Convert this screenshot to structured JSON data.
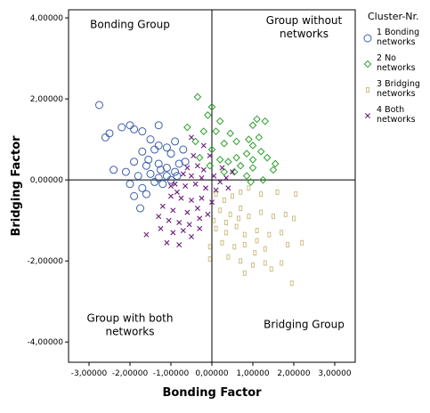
{
  "chart_data": {
    "type": "scatter",
    "xlabel": "Bonding Factor",
    "ylabel": "Bridging Factor",
    "xlim": [
      -3.5,
      3.5
    ],
    "ylim": [
      -4.5,
      4.2
    ],
    "xticks": [
      -3,
      -2,
      -1,
      0,
      1,
      2,
      3
    ],
    "yticks": [
      -4,
      -2,
      0,
      2,
      4
    ],
    "xtick_labels": [
      "-3,00000",
      "-2,00000",
      "-1,00000",
      "0,00000",
      "1,00000",
      "2,00000",
      "3,00000"
    ],
    "ytick_labels": [
      "-4,00000",
      "-2,00000",
      "0,00000",
      "2,00000",
      "4,00000"
    ],
    "reference_lines": {
      "x": 0,
      "y": 0
    },
    "quadrant_labels": [
      {
        "lines": [
          "Bonding Group"
        ],
        "x": -2.0,
        "y": 3.75
      },
      {
        "lines": [
          "Group without",
          "networks"
        ],
        "x": 2.25,
        "y": 3.85
      },
      {
        "lines": [
          "Group with both",
          "networks"
        ],
        "x": -2.0,
        "y": -3.5
      },
      {
        "lines": [
          "Bridging Group"
        ],
        "x": 2.25,
        "y": -3.65
      }
    ],
    "legend": {
      "title": "Cluster-Nr.",
      "placement": "right",
      "entries": [
        {
          "marker": "circle",
          "color": "#3b5ea8",
          "lines": [
            "1 Bonding",
            "networks"
          ]
        },
        {
          "marker": "diamond",
          "color": "#2ca02c",
          "lines": [
            "2 No",
            "networks"
          ]
        },
        {
          "marker": "square",
          "color": "#c9b87a",
          "lines": [
            "3 Bridging",
            "networks"
          ]
        },
        {
          "marker": "cross",
          "color": "#6a1b7a",
          "lines": [
            "4 Both",
            "networks"
          ]
        }
      ]
    },
    "series": [
      {
        "marker": "circle",
        "color": "#3b5ea8",
        "points": [
          [
            -2.75,
            1.85
          ],
          [
            -2.6,
            1.05
          ],
          [
            -2.5,
            1.15
          ],
          [
            -2.2,
            1.3
          ],
          [
            -2.0,
            1.35
          ],
          [
            -1.9,
            1.25
          ],
          [
            -1.7,
            1.2
          ],
          [
            -1.3,
            1.35
          ],
          [
            -1.5,
            1.0
          ],
          [
            -1.3,
            0.85
          ],
          [
            -1.1,
            0.8
          ],
          [
            -0.9,
            0.95
          ],
          [
            -1.7,
            0.7
          ],
          [
            -1.4,
            0.75
          ],
          [
            -1.0,
            0.65
          ],
          [
            -0.7,
            0.75
          ],
          [
            -1.9,
            0.45
          ],
          [
            -1.6,
            0.35
          ],
          [
            -1.3,
            0.4
          ],
          [
            -1.1,
            0.3
          ],
          [
            -0.8,
            0.4
          ],
          [
            -2.4,
            0.25
          ],
          [
            -2.1,
            0.2
          ],
          [
            -1.8,
            0.1
          ],
          [
            -1.5,
            0.15
          ],
          [
            -1.3,
            0.05
          ],
          [
            -1.1,
            0.1
          ],
          [
            -0.9,
            0.2
          ],
          [
            -2.0,
            -0.1
          ],
          [
            -1.7,
            -0.2
          ],
          [
            -1.4,
            -0.05
          ],
          [
            -1.2,
            -0.1
          ],
          [
            -1.0,
            0.0
          ],
          [
            -1.9,
            -0.4
          ],
          [
            -1.6,
            -0.35
          ],
          [
            -1.75,
            -0.7
          ],
          [
            -1.55,
            0.5
          ],
          [
            -1.25,
            0.25
          ],
          [
            -0.85,
            0.1
          ],
          [
            -0.65,
            0.45
          ]
        ]
      },
      {
        "marker": "diamond",
        "color": "#2ca02c",
        "points": [
          [
            -0.35,
            2.05
          ],
          [
            0.0,
            1.8
          ],
          [
            -0.1,
            1.6
          ],
          [
            0.2,
            1.45
          ],
          [
            0.1,
            1.2
          ],
          [
            -0.2,
            1.2
          ],
          [
            0.45,
            1.15
          ],
          [
            -0.6,
            1.3
          ],
          [
            -0.4,
            0.95
          ],
          [
            0.3,
            0.9
          ],
          [
            0.0,
            0.75
          ],
          [
            0.6,
            0.95
          ],
          [
            0.9,
            1.0
          ],
          [
            1.0,
            1.35
          ],
          [
            1.1,
            1.5
          ],
          [
            1.3,
            1.45
          ],
          [
            1.15,
            1.05
          ],
          [
            1.0,
            0.85
          ],
          [
            0.85,
            0.65
          ],
          [
            0.6,
            0.55
          ],
          [
            0.4,
            0.45
          ],
          [
            0.2,
            0.5
          ],
          [
            0.7,
            0.35
          ],
          [
            1.0,
            0.5
          ],
          [
            1.2,
            0.7
          ],
          [
            1.0,
            0.3
          ],
          [
            1.5,
            0.25
          ],
          [
            0.85,
            0.1
          ],
          [
            0.55,
            0.2
          ],
          [
            -0.3,
            0.55
          ],
          [
            -0.05,
            0.35
          ],
          [
            0.3,
            0.2
          ],
          [
            1.35,
            0.55
          ],
          [
            1.55,
            0.4
          ],
          [
            1.25,
            0.0
          ],
          [
            0.95,
            -0.05
          ]
        ]
      },
      {
        "marker": "square",
        "color": "#c9b87a",
        "points": [
          [
            0.1,
            -0.35
          ],
          [
            0.3,
            -0.5
          ],
          [
            0.5,
            -0.4
          ],
          [
            0.7,
            -0.3
          ],
          [
            0.9,
            -0.2
          ],
          [
            1.2,
            -0.35
          ],
          [
            1.6,
            -0.3
          ],
          [
            2.05,
            -0.35
          ],
          [
            0.2,
            -0.75
          ],
          [
            0.45,
            -0.85
          ],
          [
            0.7,
            -0.7
          ],
          [
            0.9,
            -0.9
          ],
          [
            1.2,
            -0.8
          ],
          [
            1.5,
            -0.9
          ],
          [
            1.8,
            -0.85
          ],
          [
            2.0,
            -0.95
          ],
          [
            0.1,
            -1.2
          ],
          [
            0.35,
            -1.3
          ],
          [
            0.6,
            -1.15
          ],
          [
            0.8,
            -1.35
          ],
          [
            1.1,
            -1.25
          ],
          [
            1.4,
            -1.35
          ],
          [
            1.7,
            -1.3
          ],
          [
            0.25,
            -1.55
          ],
          [
            0.55,
            -1.65
          ],
          [
            0.8,
            -1.6
          ],
          [
            1.05,
            -1.8
          ],
          [
            1.3,
            -1.7
          ],
          [
            1.85,
            -1.6
          ],
          [
            2.2,
            -1.55
          ],
          [
            0.4,
            -1.9
          ],
          [
            0.7,
            -2.0
          ],
          [
            1.0,
            -2.1
          ],
          [
            1.45,
            -2.2
          ],
          [
            1.7,
            -2.05
          ],
          [
            -0.05,
            -1.95
          ],
          [
            -0.05,
            -1.65
          ],
          [
            0.05,
            -1.0
          ],
          [
            1.1,
            -1.5
          ],
          [
            1.95,
            -2.55
          ],
          [
            0.35,
            -1.05
          ],
          [
            0.8,
            -2.3
          ],
          [
            1.3,
            -2.05
          ],
          [
            0.65,
            -0.95
          ]
        ]
      },
      {
        "marker": "cross",
        "color": "#6a1b7a",
        "points": [
          [
            -0.5,
            1.05
          ],
          [
            -0.2,
            0.85
          ],
          [
            -0.05,
            0.6
          ],
          [
            -0.45,
            0.6
          ],
          [
            -0.35,
            0.35
          ],
          [
            -0.2,
            0.25
          ],
          [
            0.25,
            0.3
          ],
          [
            0.5,
            0.2
          ],
          [
            -0.7,
            0.15
          ],
          [
            -0.5,
            0.1
          ],
          [
            -0.25,
            0.05
          ],
          [
            0.05,
            0.1
          ],
          [
            0.35,
            0.05
          ],
          [
            -0.9,
            -0.1
          ],
          [
            -0.65,
            -0.15
          ],
          [
            -0.4,
            -0.1
          ],
          [
            -0.15,
            -0.2
          ],
          [
            0.1,
            -0.25
          ],
          [
            0.4,
            -0.2
          ],
          [
            -1.0,
            -0.4
          ],
          [
            -0.75,
            -0.45
          ],
          [
            -0.5,
            -0.5
          ],
          [
            -0.25,
            -0.45
          ],
          [
            0.0,
            -0.55
          ],
          [
            -1.2,
            -0.65
          ],
          [
            -0.95,
            -0.75
          ],
          [
            -0.6,
            -0.8
          ],
          [
            -0.35,
            -0.7
          ],
          [
            -0.1,
            -0.85
          ],
          [
            -1.3,
            -0.9
          ],
          [
            -1.05,
            -1.0
          ],
          [
            -0.8,
            -1.05
          ],
          [
            -0.55,
            -1.1
          ],
          [
            -1.25,
            -1.2
          ],
          [
            -0.95,
            -1.3
          ],
          [
            -0.7,
            -1.25
          ],
          [
            -1.6,
            -1.35
          ],
          [
            -1.1,
            -1.55
          ],
          [
            -0.8,
            -1.6
          ],
          [
            -0.5,
            -1.4
          ],
          [
            -0.3,
            -1.2
          ],
          [
            -0.85,
            -0.3
          ],
          [
            -0.6,
            0.3
          ],
          [
            0.2,
            -0.05
          ],
          [
            -0.3,
            -0.95
          ],
          [
            -1.0,
            -0.15
          ]
        ]
      }
    ]
  }
}
